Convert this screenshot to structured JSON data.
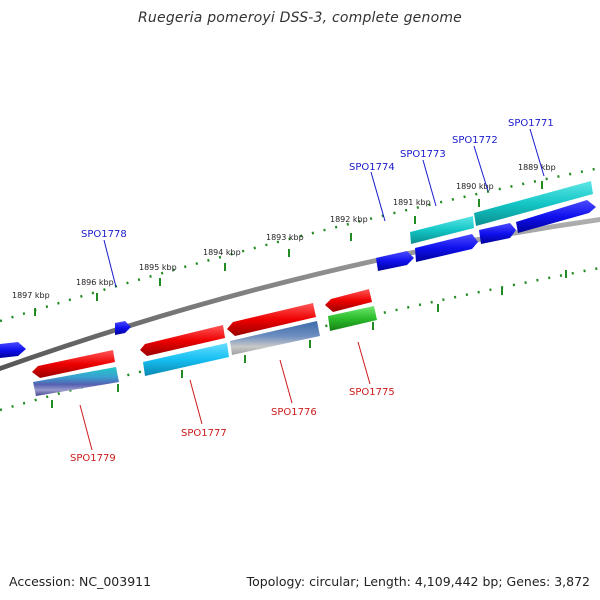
{
  "title": "Ruegeria pomeroyi DSS-3, complete genome",
  "footer": {
    "accession": "Accession: NC_003911",
    "summary": "Topology: circular; Length: 4,109,442 bp; Genes: 3,872"
  },
  "colors": {
    "forward_label": "#1a1acc",
    "reverse_label": "#cc1a1a",
    "backbone": "#7d7d7d",
    "ruler": "#228b22"
  },
  "ruler_labels": [
    "1897 kbp",
    "1896 kbp",
    "1895 kbp",
    "1894 kbp",
    "1893 kbp",
    "1892 kbp",
    "1891 kbp",
    "1890 kbp",
    "1889 kbp"
  ],
  "gene_labels": {
    "forward": [
      "SPO1778",
      "SPO1774",
      "SPO1773",
      "SPO1772",
      "SPO1771"
    ],
    "reverse": [
      "SPO1779",
      "SPO1777",
      "SPO1776",
      "SPO1775"
    ]
  }
}
